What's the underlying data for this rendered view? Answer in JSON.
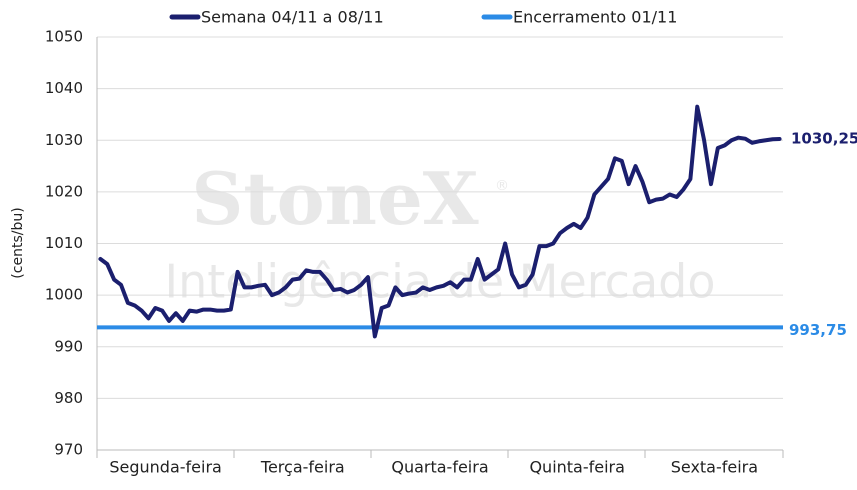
{
  "chart_data": {
    "type": "line",
    "y_label": "(cents/bu)",
    "watermark": {
      "brand": "StoneX",
      "mark": "®",
      "subtitle": "Inteligência de Mercado"
    },
    "categories": [
      null,
      null,
      null,
      null,
      null,
      null,
      null,
      null,
      null,
      null,
      "Segunda-feira",
      null,
      null,
      null,
      null,
      null,
      null,
      null,
      null,
      null,
      null,
      null,
      null,
      null,
      null,
      null,
      null,
      null,
      null,
      null,
      "Terça-feira",
      null,
      null,
      null,
      null,
      null,
      null,
      null,
      null,
      null,
      null,
      null,
      null,
      null,
      null,
      null,
      null,
      null,
      null,
      null,
      "Quarta-feira",
      null,
      null,
      null,
      null,
      null,
      null,
      null,
      null,
      null,
      null,
      null,
      null,
      null,
      null,
      null,
      null,
      null,
      null,
      null,
      "Quinta-feira",
      null,
      null,
      null,
      null,
      null,
      null,
      null,
      null,
      null,
      null,
      null,
      null,
      null,
      null,
      null,
      null,
      null,
      null,
      null,
      "Sexta-feira",
      null,
      null,
      null,
      null,
      null,
      null,
      null,
      null,
      null
    ],
    "series": [
      {
        "name": "Semana 04/11 a 08/11",
        "color": "#1b1f6e",
        "last_label": "1030,25",
        "values": [
          1007,
          1006,
          1003,
          1002,
          998.5,
          998,
          997,
          995.5,
          997.5,
          997,
          995,
          996.5,
          995,
          997,
          996.8,
          997.2,
          997.2,
          997,
          997,
          997.2,
          1004.5,
          1001.5,
          1001.5,
          1001.8,
          1002,
          1000,
          1000.5,
          1001.5,
          1003,
          1003.2,
          1004.8,
          1004.5,
          1004.5,
          1003,
          1001,
          1001.2,
          1000.5,
          1001,
          1002,
          1003.5,
          992,
          997.5,
          998,
          1001.5,
          1000,
          1000.3,
          1000.5,
          1001.5,
          1001,
          1001.5,
          1001.8,
          1002.5,
          1001.5,
          1003,
          1003,
          1007,
          1003,
          1004,
          1005,
          1010,
          1004,
          1001.5,
          1002,
          1004,
          1009.5,
          1009.5,
          1010,
          1012,
          1013,
          1013.8,
          1013,
          1015,
          1019.5,
          1021,
          1022.5,
          1026.5,
          1026,
          1021.5,
          1025,
          1022,
          1018,
          1018.5,
          1018.7,
          1019.5,
          1019,
          1020.5,
          1022.5,
          1036.5,
          1030,
          1021.5,
          1028.5,
          1029,
          1030,
          1030.5,
          1030.3,
          1029.5,
          1029.8,
          1030,
          1030.2,
          1030.25
        ]
      }
    ],
    "reference_line": {
      "name": "Encerramento 01/11",
      "color": "#2b8be6",
      "value": 993.75,
      "label": "993,75"
    },
    "ylim": [
      970,
      1050
    ],
    "yticks": [
      970,
      980,
      990,
      1000,
      1010,
      1020,
      1030,
      1040,
      1050
    ],
    "grid": true
  }
}
